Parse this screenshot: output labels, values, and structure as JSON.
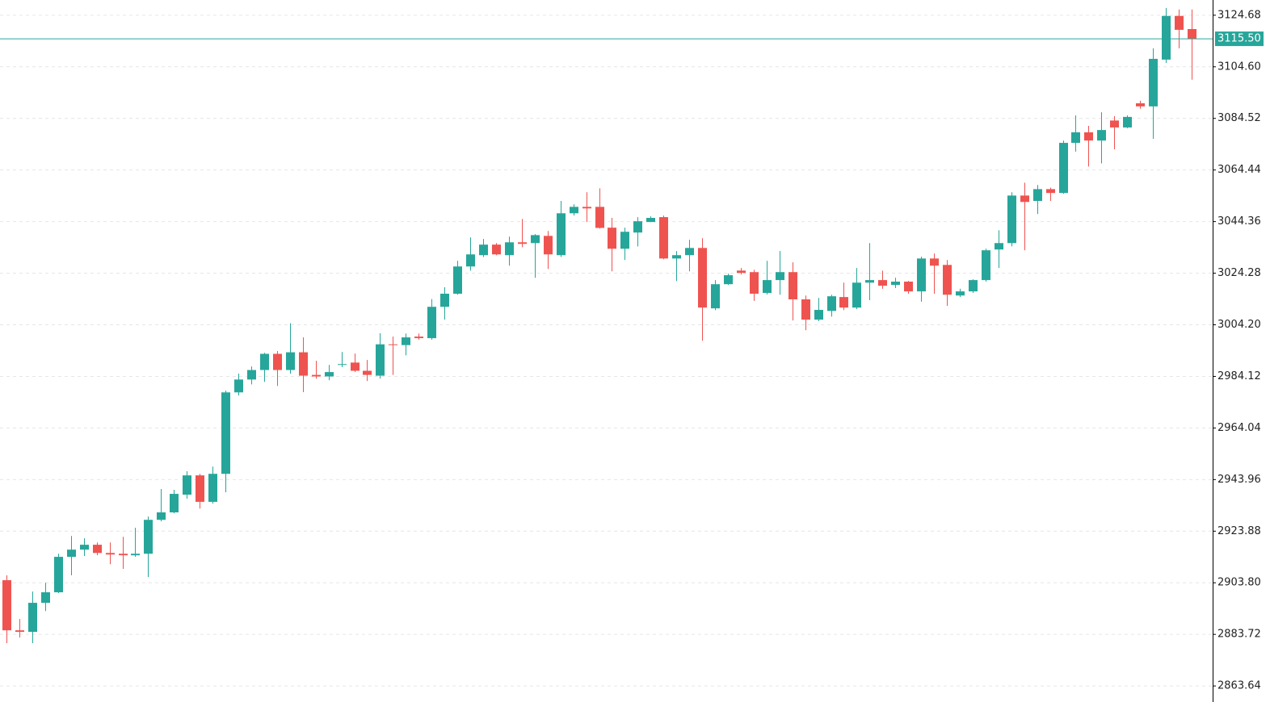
{
  "chart_data": {
    "type": "candlestick",
    "up_color": "#26a69a",
    "down_color": "#ef5350",
    "grid": true,
    "ylim": [
      2857.4,
      3130.6
    ],
    "yticks": [
      2863.64,
      2883.72,
      {
        "value": 2903.8,
        "label": "2903.80"
      },
      2923.88,
      2943.96,
      2964.04,
      2984.12,
      {
        "value": 3004.2,
        "label": "3004.20"
      },
      3024.28,
      3044.36,
      3064.44,
      3084.52,
      {
        "value": 3104.6,
        "label": "3104.60"
      },
      3124.68
    ],
    "last_price": {
      "value": 3115.5,
      "label": "3115.50"
    },
    "last_price_color": "#26a69a",
    "open": [
      2904.8,
      2885.3,
      2884.7,
      2896.0,
      2900.1,
      2913.9,
      2916.7,
      2918.6,
      2915.4,
      2915.1,
      2914.5,
      2915.1,
      2928.3,
      2931.2,
      2938.1,
      2945.6,
      2935.3,
      2946.2,
      2977.9,
      2982.9,
      2986.6,
      2992.9,
      2986.6,
      2993.5,
      2984.7,
      2984.1,
      2988.6,
      2989.5,
      2986.3,
      2984.4,
      2996.6,
      2996.3,
      2999.6,
      2999.0,
      3011.2,
      3016.3,
      3026.9,
      3031.3,
      3035.4,
      3031.3,
      3036.3,
      3036.0,
      3038.8,
      3031.3,
      3047.6,
      3050.1,
      3050.1,
      3042.0,
      3033.8,
      3040.1,
      3044.2,
      3046.1,
      3030.0,
      3031.3,
      3034.1,
      3010.6,
      3020.0,
      3025.3,
      3024.7,
      3016.6,
      3021.6,
      3024.7,
      3014.1,
      3006.2,
      3009.6,
      3015.0,
      3010.9,
      3020.6,
      3021.6,
      3019.7,
      3021.0,
      3017.2,
      3030.0,
      3027.5,
      3015.6,
      3017.2,
      3021.6,
      3033.5,
      3036.0,
      3054.5,
      3052.4,
      3057.0,
      3055.5,
      3075.0,
      3079.1,
      3075.9,
      3083.7,
      3081.0,
      3090.4,
      3089.2,
      3107.4,
      3124.4,
      3119.3
    ],
    "high": [
      2906.7,
      2889.7,
      2900.4,
      2903.8,
      2915.1,
      2922.0,
      2921.1,
      2919.5,
      2919.5,
      2921.7,
      2925.2,
      2929.6,
      2940.3,
      2940.0,
      2947.2,
      2946.2,
      2949.0,
      2978.6,
      2985.2,
      2988.0,
      2993.3,
      2994.0,
      3004.8,
      2999.3,
      2990.2,
      2988.6,
      2993.6,
      2993.0,
      2990.5,
      3000.9,
      2999.6,
      3000.8,
      3000.8,
      3014.2,
      3018.8,
      3029.1,
      3038.2,
      3037.6,
      3036.0,
      3038.5,
      3045.4,
      3039.5,
      3040.7,
      3052.4,
      3051.1,
      3055.8,
      3057.3,
      3045.8,
      3042.0,
      3046.1,
      3046.4,
      3046.7,
      3032.9,
      3037.3,
      3037.9,
      3021.6,
      3024.1,
      3026.3,
      3025.6,
      3029.1,
      3032.9,
      3028.5,
      3015.6,
      3014.7,
      3015.9,
      3020.6,
      3026.3,
      3036.0,
      3025.3,
      3022.5,
      3021.3,
      3030.7,
      3031.9,
      3029.4,
      3018.2,
      3021.9,
      3033.8,
      3041.0,
      3055.8,
      3059.5,
      3058.6,
      3057.6,
      3075.9,
      3085.7,
      3081.6,
      3086.9,
      3085.4,
      3085.7,
      3091.4,
      3111.8,
      3127.5,
      3126.9,
      3126.9
    ],
    "low": [
      2880.3,
      2882.5,
      2880.3,
      2892.8,
      2899.8,
      2906.7,
      2914.2,
      2914.5,
      2911.0,
      2909.2,
      2913.9,
      2906.0,
      2927.7,
      2930.8,
      2936.5,
      2932.7,
      2934.6,
      2939.0,
      2976.7,
      2981.0,
      2982.0,
      2980.4,
      2985.2,
      2978.0,
      2983.2,
      2982.6,
      2987.7,
      2985.8,
      2982.3,
      2983.3,
      2984.7,
      2992.3,
      2998.4,
      2998.4,
      3006.2,
      3015.9,
      3025.3,
      3030.6,
      3031.3,
      3027.2,
      3034.4,
      3022.5,
      3025.9,
      3030.6,
      3046.7,
      3044.2,
      3041.6,
      3025.0,
      3029.4,
      3034.7,
      3044.2,
      3029.7,
      3021.2,
      3025.0,
      2998.0,
      3009.9,
      3019.7,
      3023.8,
      3013.5,
      3016.0,
      3015.9,
      3005.9,
      3002.1,
      3005.6,
      3007.4,
      3009.9,
      3010.3,
      3013.8,
      3018.2,
      3018.5,
      3016.3,
      3013.2,
      3016.3,
      3011.6,
      3015.0,
      3016.6,
      3021.0,
      3026.3,
      3034.7,
      3033.2,
      3047.3,
      3052.4,
      3055.2,
      3071.6,
      3065.8,
      3067.0,
      3072.5,
      3080.7,
      3088.3,
      3076.6,
      3106.1,
      3111.8,
      3099.6
    ],
    "close": [
      2885.3,
      2884.7,
      2896.0,
      2900.1,
      2913.9,
      2916.7,
      2918.6,
      2915.4,
      2914.8,
      2914.5,
      2915.1,
      2928.3,
      2931.2,
      2938.4,
      2945.6,
      2935.3,
      2946.2,
      2977.9,
      2982.9,
      2986.6,
      2992.9,
      2986.6,
      2993.5,
      2984.4,
      2984.1,
      2985.8,
      2988.9,
      2986.3,
      2984.7,
      2996.6,
      2996.3,
      2999.3,
      2999.0,
      3011.2,
      3016.3,
      3026.9,
      3031.6,
      3035.4,
      3031.6,
      3036.3,
      3035.7,
      3039.1,
      3031.6,
      3047.6,
      3050.1,
      3049.5,
      3041.9,
      3033.8,
      3040.4,
      3044.5,
      3045.8,
      3030.0,
      3031.3,
      3034.1,
      3010.9,
      3020.0,
      3023.5,
      3024.4,
      3016.3,
      3021.6,
      3024.7,
      3014.1,
      3006.2,
      3010.0,
      3015.3,
      3010.9,
      3020.6,
      3021.6,
      3019.4,
      3021.0,
      3017.2,
      3030.0,
      3027.2,
      3015.9,
      3017.2,
      3021.6,
      3033.2,
      3036.0,
      3054.5,
      3052.0,
      3057.0,
      3055.5,
      3075.0,
      3079.1,
      3075.9,
      3080.0,
      3081.0,
      3085.1,
      3089.2,
      3107.7,
      3124.4,
      3119.0,
      3115.5
    ]
  }
}
